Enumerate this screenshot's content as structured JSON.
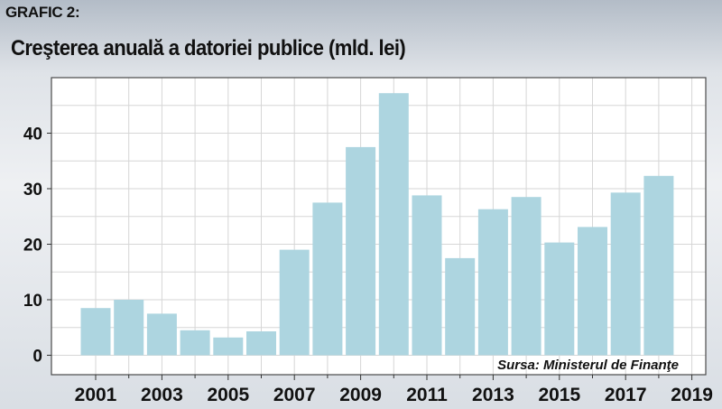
{
  "figure_label": "GRAFIC 2:",
  "chart_data": {
    "type": "bar",
    "title": "Creşterea anuală a datoriei publice (mld. lei)",
    "categories": [
      "2001",
      "2002",
      "2003",
      "2004",
      "2005",
      "2006",
      "2007",
      "2008",
      "2009",
      "2010",
      "2011",
      "2012",
      "2013",
      "2014",
      "2015",
      "2016",
      "2017",
      "2018"
    ],
    "values": [
      8.5,
      10,
      7.5,
      4.5,
      3.2,
      4.3,
      19,
      27.5,
      37.5,
      47.2,
      28.8,
      17.5,
      26.3,
      28.5,
      20.3,
      23.1,
      29.3,
      32.3
    ],
    "x_tick_labels": [
      "2001",
      "2003",
      "2005",
      "2007",
      "2009",
      "2011",
      "2013",
      "2015",
      "2017",
      "2019"
    ],
    "y_ticks": [
      0,
      10,
      20,
      30,
      40
    ],
    "ylim": [
      -3.5,
      50
    ],
    "xlabel": "",
    "ylabel": "",
    "grid": true,
    "bar_color": "#add5e0",
    "source": "Sursa: Ministerul de Finanţe"
  }
}
